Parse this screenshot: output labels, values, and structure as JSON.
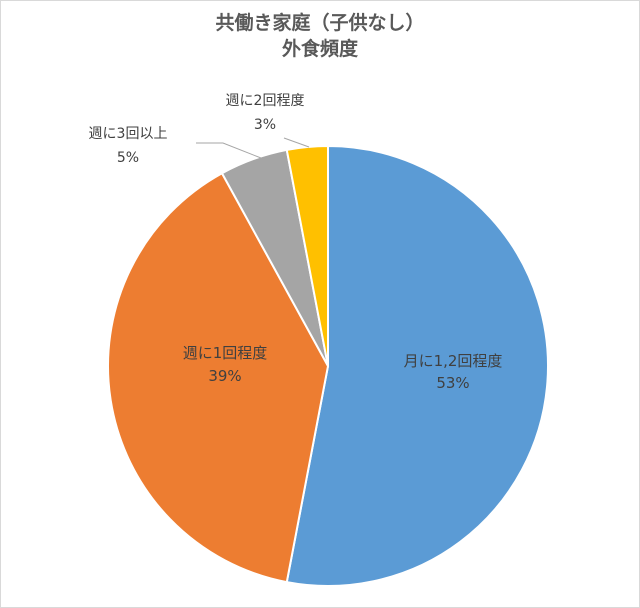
{
  "chart_data": {
    "type": "pie",
    "title_lines": [
      "共働き家庭（子供なし）",
      "外食頻度"
    ],
    "slices": [
      {
        "label": "月に1,2回程度",
        "value": 53,
        "value_label": "53%",
        "color": "#5B9BD5"
      },
      {
        "label": "週に1回程度",
        "value": 39,
        "value_label": "39%",
        "color": "#ED7D31"
      },
      {
        "label": "週に3回以上",
        "value": 5,
        "value_label": "5%",
        "color": "#A5A5A5"
      },
      {
        "label": "週に2回程度",
        "value": 3,
        "value_label": "3%",
        "color": "#FFC000"
      }
    ]
  }
}
